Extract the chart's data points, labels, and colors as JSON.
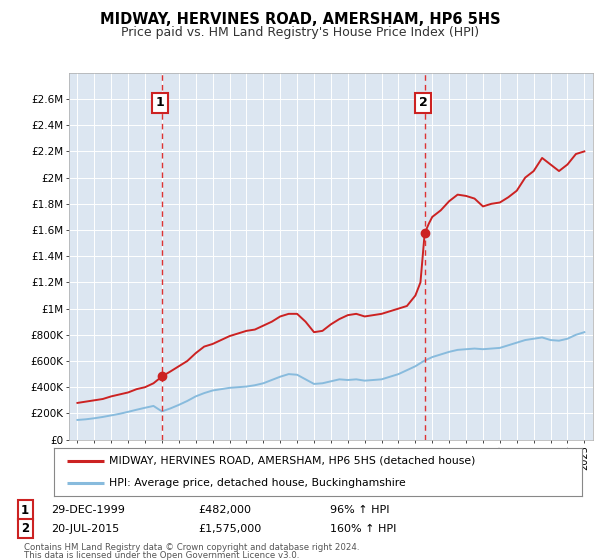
{
  "title": "MIDWAY, HERVINES ROAD, AMERSHAM, HP6 5HS",
  "subtitle": "Price paid vs. HM Land Registry's House Price Index (HPI)",
  "title_fontsize": 10.5,
  "subtitle_fontsize": 9,
  "background_color": "#ffffff",
  "plot_bg_color": "#dce6f1",
  "grid_color": "#ffffff",
  "red_line_color": "#cc2222",
  "blue_line_color": "#88bbdd",
  "marker1_date_x": 2000.0,
  "marker2_date_x": 2015.55,
  "marker1_y": 482000,
  "marker2_y": 1575000,
  "annotation1_label": "1",
  "annotation2_label": "2",
  "vline_color": "#dd3333",
  "ylim": [
    0,
    2800000
  ],
  "xlim": [
    1994.5,
    2025.5
  ],
  "yticks": [
    0,
    200000,
    400000,
    600000,
    800000,
    1000000,
    1200000,
    1400000,
    1600000,
    1800000,
    2000000,
    2200000,
    2400000,
    2600000
  ],
  "ytick_labels": [
    "£0",
    "£200K",
    "£400K",
    "£600K",
    "£800K",
    "£1M",
    "£1.2M",
    "£1.4M",
    "£1.6M",
    "£1.8M",
    "£2M",
    "£2.2M",
    "£2.4M",
    "£2.6M"
  ],
  "xticks": [
    1995,
    1996,
    1997,
    1998,
    1999,
    2000,
    2001,
    2002,
    2003,
    2004,
    2005,
    2006,
    2007,
    2008,
    2009,
    2010,
    2011,
    2012,
    2013,
    2014,
    2015,
    2016,
    2017,
    2018,
    2019,
    2020,
    2021,
    2022,
    2023,
    2024,
    2025
  ],
  "legend_line1": "MIDWAY, HERVINES ROAD, AMERSHAM, HP6 5HS (detached house)",
  "legend_line2": "HPI: Average price, detached house, Buckinghamshire",
  "ann1_date": "29-DEC-1999",
  "ann1_price": "£482,000",
  "ann1_hpi": "96% ↑ HPI",
  "ann2_date": "20-JUL-2015",
  "ann2_price": "£1,575,000",
  "ann2_hpi": "160% ↑ HPI",
  "footer1": "Contains HM Land Registry data © Crown copyright and database right 2024.",
  "footer2": "This data is licensed under the Open Government Licence v3.0.",
  "red_line_x": [
    1995.0,
    1995.5,
    1996.0,
    1996.5,
    1997.0,
    1997.5,
    1998.0,
    1998.5,
    1999.0,
    1999.5,
    2000.0,
    2000.5,
    2001.0,
    2001.5,
    2002.0,
    2002.5,
    2003.0,
    2003.5,
    2004.0,
    2004.5,
    2005.0,
    2005.5,
    2006.0,
    2006.5,
    2007.0,
    2007.5,
    2008.0,
    2008.5,
    2009.0,
    2009.5,
    2010.0,
    2010.5,
    2011.0,
    2011.5,
    2012.0,
    2012.5,
    2013.0,
    2013.5,
    2014.0,
    2014.5,
    2015.0,
    2015.3,
    2015.55,
    2015.8,
    2016.0,
    2016.5,
    2017.0,
    2017.5,
    2018.0,
    2018.5,
    2019.0,
    2019.5,
    2020.0,
    2020.5,
    2021.0,
    2021.5,
    2022.0,
    2022.5,
    2023.0,
    2023.5,
    2024.0,
    2024.5,
    2025.0
  ],
  "red_line_y": [
    280000,
    290000,
    300000,
    310000,
    330000,
    345000,
    360000,
    385000,
    400000,
    430000,
    482000,
    520000,
    560000,
    600000,
    660000,
    710000,
    730000,
    760000,
    790000,
    810000,
    830000,
    840000,
    870000,
    900000,
    940000,
    960000,
    960000,
    900000,
    820000,
    830000,
    880000,
    920000,
    950000,
    960000,
    940000,
    950000,
    960000,
    980000,
    1000000,
    1020000,
    1100000,
    1200000,
    1575000,
    1650000,
    1700000,
    1750000,
    1820000,
    1870000,
    1860000,
    1840000,
    1780000,
    1800000,
    1810000,
    1850000,
    1900000,
    2000000,
    2050000,
    2150000,
    2100000,
    2050000,
    2100000,
    2180000,
    2200000
  ],
  "blue_line_x": [
    1995.0,
    1995.5,
    1996.0,
    1996.5,
    1997.0,
    1997.5,
    1998.0,
    1998.5,
    1999.0,
    1999.5,
    2000.0,
    2000.5,
    2001.0,
    2001.5,
    2002.0,
    2002.5,
    2003.0,
    2003.5,
    2004.0,
    2004.5,
    2005.0,
    2005.5,
    2006.0,
    2006.5,
    2007.0,
    2007.5,
    2008.0,
    2008.5,
    2009.0,
    2009.5,
    2010.0,
    2010.5,
    2011.0,
    2011.5,
    2012.0,
    2012.5,
    2013.0,
    2013.5,
    2014.0,
    2014.5,
    2015.0,
    2015.5,
    2016.0,
    2016.5,
    2017.0,
    2017.5,
    2018.0,
    2018.5,
    2019.0,
    2019.5,
    2020.0,
    2020.5,
    2021.0,
    2021.5,
    2022.0,
    2022.5,
    2023.0,
    2023.5,
    2024.0,
    2024.5,
    2025.0
  ],
  "blue_line_y": [
    150000,
    155000,
    163000,
    173000,
    185000,
    197000,
    212000,
    228000,
    243000,
    257000,
    215000,
    238000,
    265000,
    295000,
    330000,
    355000,
    375000,
    385000,
    395000,
    400000,
    405000,
    415000,
    430000,
    455000,
    480000,
    500000,
    495000,
    460000,
    425000,
    430000,
    445000,
    460000,
    455000,
    460000,
    450000,
    455000,
    460000,
    480000,
    500000,
    530000,
    560000,
    600000,
    630000,
    650000,
    670000,
    685000,
    690000,
    695000,
    690000,
    695000,
    700000,
    720000,
    740000,
    760000,
    770000,
    780000,
    760000,
    755000,
    770000,
    800000,
    820000
  ]
}
